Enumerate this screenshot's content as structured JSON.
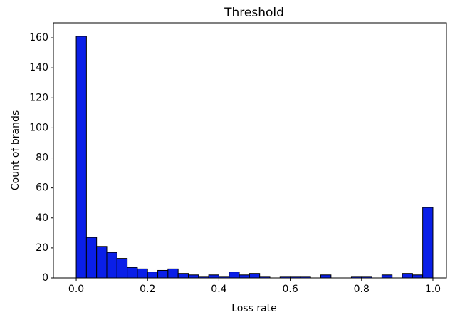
{
  "chart_data": {
    "type": "histogram",
    "title": "Threshold",
    "x_label": "Loss rate",
    "y_label": "Count of brands",
    "bins": [
      0,
      0.0286,
      0.0571,
      0.0857,
      0.1143,
      0.1429,
      0.1714,
      0.2,
      0.2286,
      0.2571,
      0.2857,
      0.3143,
      0.3429,
      0.3714,
      0.4,
      0.4286,
      0.4571,
      0.4857,
      0.5143,
      0.5429,
      0.5714,
      0.6,
      0.6286,
      0.6571,
      0.6857,
      0.7143,
      0.7429,
      0.7714,
      0.8,
      0.8286,
      0.8571,
      0.8857,
      0.9143,
      0.9429,
      0.9714,
      1
    ],
    "counts": [
      161,
      27,
      21,
      17,
      13,
      7,
      6,
      4,
      5,
      6,
      3,
      2,
      1,
      2,
      1,
      4,
      2,
      3,
      1,
      0,
      1,
      1,
      1,
      0,
      2,
      0,
      0,
      1,
      1,
      0,
      2,
      0,
      3,
      2,
      47
    ],
    "color": "#0a1fe8",
    "edgecolor": "#000000",
    "xlim": [
      -0.064,
      1.038
    ],
    "xticks": [
      {
        "value": 0,
        "label": "0.0"
      },
      0.2,
      0.4,
      0.6,
      0.8,
      {
        "value": 1,
        "label": "1.0"
      }
    ],
    "ylim": [
      0,
      170
    ],
    "yticks": [
      0,
      20,
      40,
      60,
      80,
      100,
      120,
      140,
      160
    ]
  }
}
